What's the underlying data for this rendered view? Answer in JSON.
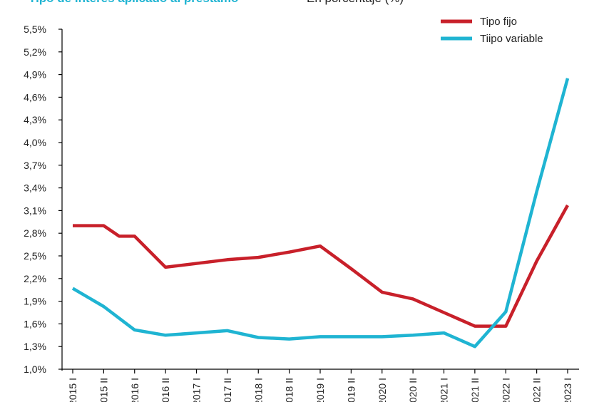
{
  "chart_data": {
    "type": "line",
    "title": "Tipo de interés aplicado al préstamo",
    "subtitle": "En porcentaje (%)",
    "categories": [
      "2015 I",
      "2015 II",
      "2016 I",
      "2016 II",
      "2017 I",
      "2017 II",
      "2018 I",
      "2018 II",
      "2019 I",
      "2019 II",
      "2020 I",
      "2020 II",
      "2021 I",
      "2021 II",
      "2022 I",
      "2022 II",
      "2023 I"
    ],
    "x": [
      0,
      0.5,
      1,
      1.2,
      1.5,
      2,
      2.5,
      3,
      3.5,
      4,
      4.5,
      5,
      5.5,
      6,
      6.5,
      7,
      7.5,
      8,
      8.5,
      9,
      9.5,
      10,
      10.5,
      11,
      11.5,
      12,
      12.5,
      13,
      13.5,
      14,
      14.5,
      15,
      15.5,
      16
    ],
    "y_ticks": [
      "1,0%",
      "1,3%",
      "1,6%",
      "1,9%",
      "2,2%",
      "2,5%",
      "2,8%",
      "3,1%",
      "3,4%",
      "3,7%",
      "4,0%",
      "4,3%",
      "4,6%",
      "4,9%",
      "5,2%",
      "5,5%"
    ],
    "ylim": [
      1.0,
      5.5
    ],
    "xlabel": "",
    "ylabel": "",
    "grid": false,
    "legend": "top-right",
    "series": [
      {
        "name": "Tipo fijo",
        "color": "#c8202a",
        "points": [
          [
            0,
            2.9
          ],
          [
            1,
            2.9
          ],
          [
            1.5,
            2.76
          ],
          [
            2,
            2.76
          ],
          [
            3,
            2.35
          ],
          [
            5,
            2.45
          ],
          [
            6,
            2.48
          ],
          [
            7,
            2.55
          ],
          [
            8,
            2.63
          ],
          [
            9,
            2.33
          ],
          [
            10,
            2.02
          ],
          [
            11,
            1.93
          ],
          [
            12,
            1.75
          ],
          [
            13,
            1.57
          ],
          [
            14,
            1.57
          ],
          [
            15,
            2.43
          ],
          [
            16,
            3.17
          ]
        ]
      },
      {
        "name": "Tiipo variable",
        "color": "#1fb4d2",
        "points": [
          [
            0,
            2.07
          ],
          [
            1,
            1.83
          ],
          [
            2,
            1.52
          ],
          [
            3,
            1.45
          ],
          [
            4,
            1.48
          ],
          [
            5,
            1.51
          ],
          [
            6,
            1.42
          ],
          [
            7,
            1.4
          ],
          [
            8,
            1.43
          ],
          [
            9,
            1.43
          ],
          [
            10,
            1.43
          ],
          [
            11,
            1.45
          ],
          [
            12,
            1.48
          ],
          [
            13,
            1.3
          ],
          [
            14,
            1.76
          ],
          [
            15,
            3.35
          ],
          [
            16,
            4.85
          ]
        ]
      }
    ]
  },
  "colors": {
    "title": "#1fb4d2",
    "axis": "#000000"
  }
}
